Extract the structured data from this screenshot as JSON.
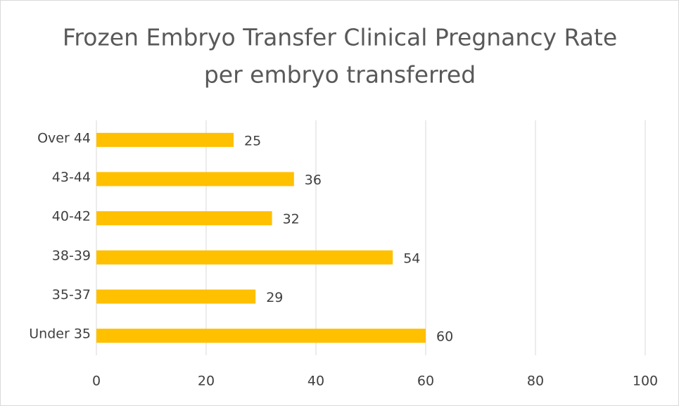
{
  "chart_data": {
    "type": "bar",
    "orientation": "horizontal",
    "title": "Frozen Embryo Transfer Clinical Pregnancy Rate",
    "subtitle": "per embryo transferred",
    "categories": [
      "Over 44",
      "43-44",
      "40-42",
      "38-39",
      "35-37",
      "Under 35"
    ],
    "values": [
      25,
      36,
      32,
      54,
      29,
      60
    ],
    "color": "#ffc000",
    "xlim": [
      0,
      100
    ],
    "xticks": [
      0,
      20,
      40,
      60,
      80,
      100
    ],
    "grid": true
  }
}
